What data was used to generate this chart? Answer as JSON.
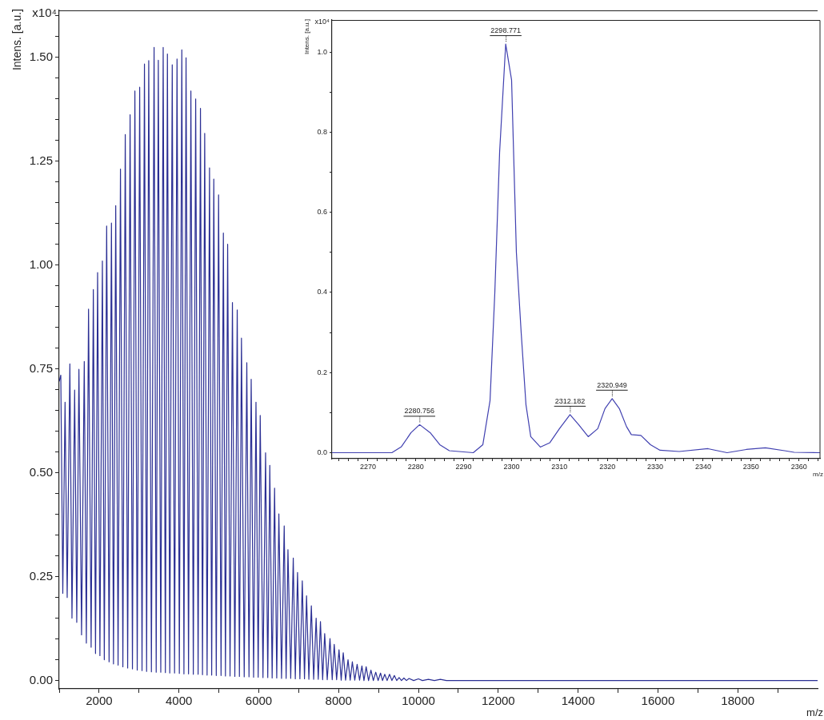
{
  "chart_data": [
    {
      "type": "line",
      "ylabel": "Intens. [a.u.]",
      "xlabel": "m/z",
      "annotations": [
        "x10⁴"
      ],
      "xlim": [
        1000,
        20000
      ],
      "xticks": [
        {
          "value": 1000,
          "label": null
        },
        2000,
        {
          "value": 3000,
          "label": null
        },
        4000,
        {
          "value": 5000,
          "label": null
        },
        6000,
        {
          "value": 7000,
          "label": null
        },
        8000,
        {
          "value": 9000,
          "label": null
        },
        10000,
        {
          "value": 11000,
          "label": null
        },
        12000,
        {
          "value": 13000,
          "label": null
        },
        14000,
        {
          "value": 15000,
          "label": null
        },
        16000,
        {
          "value": 17000,
          "label": null
        },
        18000,
        {
          "value": 19000,
          "label": null
        }
      ],
      "ylim": [
        -0.02,
        1.613
      ],
      "yticks": [
        {
          "value": 0,
          "label": "0.00"
        },
        {
          "value": 0.05,
          "label": null
        },
        {
          "value": 0.1,
          "label": null
        },
        {
          "value": 0.15,
          "label": null
        },
        {
          "value": 0.2,
          "label": null
        },
        {
          "value": 0.25,
          "label": "0.25"
        },
        {
          "value": 0.3,
          "label": null
        },
        {
          "value": 0.35,
          "label": null
        },
        {
          "value": 0.4,
          "label": null
        },
        {
          "value": 0.45,
          "label": null
        },
        {
          "value": 0.5,
          "label": "0.50"
        },
        {
          "value": 0.55,
          "label": null
        },
        {
          "value": 0.6,
          "label": null
        },
        {
          "value": 0.65,
          "label": null
        },
        {
          "value": 0.7,
          "label": null
        },
        {
          "value": 0.75,
          "label": "0.75"
        },
        {
          "value": 0.8,
          "label": null
        },
        {
          "value": 0.85,
          "label": null
        },
        {
          "value": 0.9,
          "label": null
        },
        {
          "value": 0.95,
          "label": null
        },
        {
          "value": 1,
          "label": "1.00"
        },
        {
          "value": 1.05,
          "label": null
        },
        {
          "value": 1.1,
          "label": null
        },
        {
          "value": 1.15,
          "label": null
        },
        {
          "value": 1.2,
          "label": null
        },
        {
          "value": 1.25,
          "label": "1.25"
        },
        {
          "value": 1.3,
          "label": null
        },
        {
          "value": 1.35,
          "label": null
        },
        {
          "value": 1.4,
          "label": null
        },
        {
          "value": 1.45,
          "label": null
        },
        {
          "value": 1.5,
          "label": "1.50"
        },
        {
          "value": 1.55,
          "label": null
        },
        {
          "value": 1.6,
          "label": null
        }
      ],
      "grid": false,
      "legend": false,
      "marker": "none",
      "series": [
        {
          "color": "#2b2f94",
          "x": [
            1000,
            1040,
            1090,
            1147,
            1200,
            1267,
            1320,
            1387,
            1440,
            1494,
            1560,
            1628,
            1680,
            1735,
            1800,
            1855,
            1910,
            1962,
            2020,
            2082,
            2130,
            2189,
            2250,
            2309,
            2360,
            2416,
            2475,
            2535,
            2595,
            2655,
            2715,
            2776,
            2835,
            2896,
            2955,
            3016,
            3075,
            3136,
            3190,
            3243,
            3310,
            3377,
            3430,
            3483,
            3545,
            3605,
            3660,
            3711,
            3770,
            3832,
            3890,
            3952,
            4010,
            4072,
            4125,
            4178,
            4240,
            4299,
            4360,
            4419,
            4480,
            4539,
            4590,
            4645,
            4705,
            4766,
            4820,
            4873,
            4935,
            4993,
            5055,
            5113,
            5165,
            5220,
            5280,
            5340,
            5400,
            5460,
            5515,
            5566,
            5635,
            5700,
            5755,
            5810,
            5870,
            5930,
            5985,
            6036,
            6105,
            6170,
            6225,
            6276,
            6335,
            6396,
            6450,
            6503,
            6570,
            6637,
            6685,
            6731,
            6800,
            6864,
            6915,
            6971,
            7030,
            7090,
            7145,
            7197,
            7255,
            7317,
            7375,
            7437,
            7490,
            7545,
            7600,
            7651,
            7715,
            7784,
            7840,
            7890,
            7950,
            8010,
            8065,
            8116,
            8175,
            8236,
            8290,
            8344,
            8405,
            8464,
            8525,
            8584,
            8635,
            8690,
            8750,
            8810,
            8870,
            8930,
            8990,
            9050,
            9100,
            9156,
            9215,
            9276,
            9335,
            9396,
            9455,
            9516,
            9575,
            9636,
            9700,
            9764,
            9880,
            10000,
            10100,
            10250,
            10400,
            10550,
            10700,
            20000
          ],
          "values": [
            0.72,
            0.735,
            0.21,
            0.67,
            0.2,
            0.762,
            0.15,
            0.699,
            0.14,
            0.749,
            0.11,
            0.768,
            0.09,
            0.894,
            0.08,
            0.941,
            0.065,
            0.982,
            0.06,
            1.01,
            0.05,
            1.094,
            0.045,
            1.101,
            0.04,
            1.143,
            0.037,
            1.231,
            0.033,
            1.314,
            0.03,
            1.362,
            0.028,
            1.419,
            0.025,
            1.428,
            0.024,
            1.484,
            0.022,
            1.492,
            0.021,
            1.524,
            0.02,
            1.493,
            0.02,
            1.524,
            0.019,
            1.508,
            0.018,
            1.482,
            0.018,
            1.496,
            0.017,
            1.518,
            0.016,
            1.499,
            0.016,
            1.419,
            0.015,
            1.4,
            0.015,
            1.377,
            0.014,
            1.317,
            0.013,
            1.234,
            0.013,
            1.207,
            0.012,
            1.169,
            0.012,
            1.077,
            0.011,
            1.05,
            0.011,
            0.91,
            0.01,
            0.892,
            0.01,
            0.824,
            0.009,
            0.765,
            0.009,
            0.725,
            0.008,
            0.67,
            0.008,
            0.638,
            0.007,
            0.548,
            0.007,
            0.518,
            0.006,
            0.463,
            0.006,
            0.401,
            0.005,
            0.372,
            0.005,
            0.315,
            0.005,
            0.295,
            0.004,
            0.26,
            0.004,
            0.24,
            0.004,
            0.204,
            0.003,
            0.18,
            0.003,
            0.15,
            0.003,
            0.142,
            0.002,
            0.113,
            0.002,
            0.101,
            0.002,
            0.087,
            0.002,
            0.074,
            0.001,
            0.067,
            0.001,
            0.05,
            0.001,
            0.045,
            0.001,
            0.039,
            0.001,
            0.035,
            0,
            0.033,
            0,
            0.025,
            0,
            0.02,
            0,
            0.018,
            0,
            0.015,
            0,
            0.015,
            0,
            0.012,
            0,
            0.007,
            0,
            0.006,
            0,
            0.005,
            0,
            0.004,
            0,
            0.003,
            0,
            0.003,
            0,
            0
          ]
        }
      ]
    },
    {
      "type": "line",
      "ylabel": "Intens. [a.u.]",
      "xlabel": "m/z",
      "annotations": [
        "x10⁴",
        {
          "text": "2280.756",
          "x": 2280.756,
          "y": 0.07
        },
        {
          "text": "2298.771",
          "x": 2298.771,
          "y": 1.02
        },
        {
          "text": "2312.182",
          "x": 2312.182,
          "y": 0.095
        },
        {
          "text": "2320.949",
          "x": 2320.949,
          "y": 0.135
        }
      ],
      "xlim": [
        2262.5,
        2364.4
      ],
      "xticks": [
        {
          "value": 2264,
          "label": null
        },
        {
          "value": 2266,
          "label": null
        },
        {
          "value": 2268,
          "label": null
        },
        2270,
        {
          "value": 2272,
          "label": null
        },
        {
          "value": 2274,
          "label": null
        },
        {
          "value": 2276,
          "label": null
        },
        {
          "value": 2278,
          "label": null
        },
        2280,
        {
          "value": 2282,
          "label": null
        },
        {
          "value": 2284,
          "label": null
        },
        {
          "value": 2286,
          "label": null
        },
        {
          "value": 2288,
          "label": null
        },
        2290,
        {
          "value": 2292,
          "label": null
        },
        {
          "value": 2294,
          "label": null
        },
        {
          "value": 2296,
          "label": null
        },
        {
          "value": 2298,
          "label": null
        },
        2300,
        {
          "value": 2302,
          "label": null
        },
        {
          "value": 2304,
          "label": null
        },
        {
          "value": 2306,
          "label": null
        },
        {
          "value": 2308,
          "label": null
        },
        2310,
        {
          "value": 2312,
          "label": null
        },
        {
          "value": 2314,
          "label": null
        },
        {
          "value": 2316,
          "label": null
        },
        {
          "value": 2318,
          "label": null
        },
        2320,
        {
          "value": 2322,
          "label": null
        },
        {
          "value": 2324,
          "label": null
        },
        {
          "value": 2326,
          "label": null
        },
        {
          "value": 2328,
          "label": null
        },
        2330,
        {
          "value": 2332,
          "label": null
        },
        {
          "value": 2334,
          "label": null
        },
        {
          "value": 2336,
          "label": null
        },
        {
          "value": 2338,
          "label": null
        },
        2340,
        {
          "value": 2342,
          "label": null
        },
        {
          "value": 2344,
          "label": null
        },
        {
          "value": 2346,
          "label": null
        },
        {
          "value": 2348,
          "label": null
        },
        2350,
        {
          "value": 2352,
          "label": null
        },
        {
          "value": 2354,
          "label": null
        },
        {
          "value": 2356,
          "label": null
        },
        {
          "value": 2358,
          "label": null
        },
        2360,
        {
          "value": 2362,
          "label": null
        },
        {
          "value": 2364,
          "label": null
        }
      ],
      "ylim": [
        -0.015,
        1.08
      ],
      "yticks": [
        {
          "value": 0,
          "label": "0.0"
        },
        {
          "value": 0.1,
          "label": null
        },
        0.2,
        {
          "value": 0.3,
          "label": null
        },
        0.4,
        {
          "value": 0.5,
          "label": null
        },
        0.6,
        {
          "value": 0.7,
          "label": null
        },
        0.8,
        {
          "value": 0.9,
          "label": null
        },
        {
          "value": 1,
          "label": "1.0"
        }
      ],
      "grid": false,
      "legend": false,
      "marker": "none",
      "series": [
        {
          "color": "#4040b0",
          "x": [
            2262.5,
            2275,
            2277,
            2279,
            2280.8,
            2283,
            2285,
            2287,
            2290,
            2292,
            2294,
            2295.5,
            2296.5,
            2297.5,
            2298.77,
            2300,
            2301,
            2302,
            2303,
            2304,
            2306,
            2308,
            2310,
            2312.2,
            2314,
            2316,
            2318,
            2319.5,
            2321,
            2322.5,
            2324,
            2325,
            2327,
            2329,
            2331,
            2335,
            2341,
            2345,
            2349,
            2353,
            2357,
            2359,
            2364.4
          ],
          "values": [
            0,
            0,
            0.015,
            0.05,
            0.07,
            0.05,
            0.02,
            0.005,
            0.002,
            0,
            0.02,
            0.13,
            0.4,
            0.75,
            1.02,
            0.93,
            0.5,
            0.3,
            0.12,
            0.04,
            0.014,
            0.025,
            0.06,
            0.095,
            0.07,
            0.04,
            0.06,
            0.11,
            0.135,
            0.11,
            0.065,
            0.045,
            0.043,
            0.02,
            0.006,
            0.003,
            0.01,
            0,
            0.008,
            0.012,
            0.005,
            0.001,
            0
          ]
        }
      ]
    }
  ]
}
